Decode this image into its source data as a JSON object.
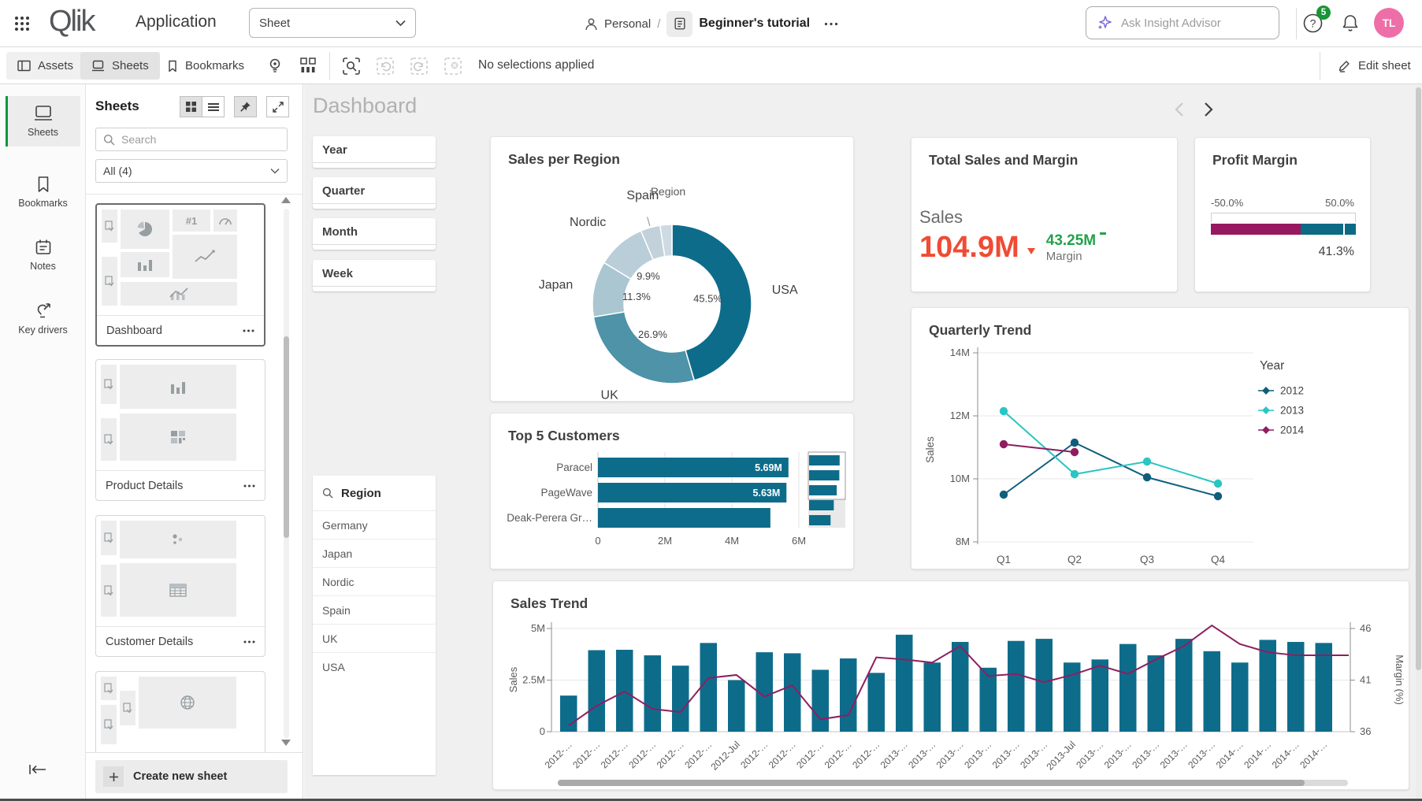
{
  "app": {
    "brand": "Qlik",
    "title": "Application",
    "view_selector": "Sheet",
    "space": "Personal",
    "separator": "/",
    "doc_title": "Beginner's tutorial",
    "insight_placeholder": "Ask Insight Advisor",
    "help_badge": "5",
    "avatar_initials": "TL"
  },
  "toolbar": {
    "assets": "Assets",
    "sheets": "Sheets",
    "bookmarks": "Bookmarks",
    "selections_status": "No selections applied",
    "edit_sheet": "Edit sheet"
  },
  "nav_rail": {
    "items": [
      "Sheets",
      "Bookmarks",
      "Notes",
      "Key drivers"
    ]
  },
  "sheets_panel": {
    "title": "Sheets",
    "search_placeholder": "Search",
    "filter_value": "All (4)",
    "cards": [
      {
        "label": "Dashboard"
      },
      {
        "label": "Product Details"
      },
      {
        "label": "Customer Details"
      }
    ],
    "create_button": "Create new sheet"
  },
  "sheet": {
    "title": "Dashboard",
    "filters": [
      "Year",
      "Quarter",
      "Month",
      "Week"
    ],
    "region_filter": {
      "title": "Region",
      "items": [
        "Germany",
        "Japan",
        "Nordic",
        "Spain",
        "UK",
        "USA"
      ]
    }
  },
  "kpi_sales": {
    "title": "Total Sales and Margin",
    "label": "Sales",
    "value": "104.9M",
    "secondary_value": "43.25M",
    "secondary_label": "Margin",
    "value_color": "#f04b34",
    "secondary_color": "#23a14d"
  },
  "gauge": {
    "title": "Profit Margin",
    "min_label": "-50.0%",
    "max_label": "50.0%",
    "value_label": "41.3%",
    "min": -50,
    "max": 50,
    "value": 41.3,
    "segment_split_pct": 62,
    "low_color": "#97195f",
    "high_color": "#0c6a84"
  },
  "chart_data": [
    {
      "id": "sales_per_region",
      "type": "pie",
      "title": "Sales per Region",
      "legend_title": "Region",
      "labels": [
        "USA",
        "UK",
        "Japan",
        "Nordic",
        "Spain",
        "Germany"
      ],
      "values": [
        45.5,
        26.9,
        11.3,
        9.9,
        4.0,
        2.4
      ],
      "value_labels": [
        "45.5%",
        "26.9%",
        "11.3%",
        "9.9%",
        "",
        ""
      ],
      "outer_labels": [
        "USA",
        "UK",
        "Japan",
        "Nordic",
        "Spain",
        ""
      ],
      "colors": [
        "#0e6c8b",
        "#4e93a8",
        "#a9c6d1",
        "#b9ced8",
        "#c3d2da",
        "#cedae1"
      ],
      "donut": true
    },
    {
      "id": "top5_customers",
      "type": "bar",
      "title": "Top 5 Customers",
      "orientation": "horizontal",
      "categories": [
        "Paracel",
        "PageWave",
        "Deak-Perera Gr…"
      ],
      "values": [
        5.69,
        5.63,
        5.15
      ],
      "bar_labels": [
        "5.69M",
        "5.63M",
        ""
      ],
      "xticks": [
        "0",
        "2M",
        "4M",
        "6M"
      ],
      "xtick_values": [
        0,
        2,
        4,
        6
      ],
      "xmax": 6.6,
      "bar_color": "#0e6c8b",
      "navigator_values": [
        5.69,
        5.63,
        5.15,
        4.6,
        4.0
      ],
      "navigator_window": 3
    },
    {
      "id": "quarterly_trend",
      "type": "line",
      "title": "Quarterly Trend",
      "ylabel": "Sales",
      "legend_title": "Year",
      "categories": [
        "Q1",
        "Q2",
        "Q3",
        "Q4"
      ],
      "yticks": [
        "8M",
        "10M",
        "12M",
        "14M"
      ],
      "ytick_values": [
        8,
        10,
        12,
        14
      ],
      "ylim": [
        8,
        14.6
      ],
      "series": [
        {
          "name": "2012",
          "color": "#0f5e7d",
          "values": [
            9.5,
            11.15,
            10.05,
            9.45
          ]
        },
        {
          "name": "2013",
          "color": "#29c6c3",
          "values": [
            12.15,
            10.15,
            10.55,
            9.85
          ]
        },
        {
          "name": "2014",
          "color": "#8e1e60",
          "values": [
            11.1,
            10.85,
            null,
            null
          ]
        }
      ]
    },
    {
      "id": "sales_trend",
      "type": "combo",
      "title": "Sales Trend",
      "ylabel_left": "Sales",
      "ylabel_right": "Margin (%)",
      "yticks_left": [
        "0",
        "2.5M",
        "5M"
      ],
      "ytick_values_left": [
        0,
        2.5,
        5
      ],
      "ylim_left": [
        0,
        5.2
      ],
      "yticks_right": [
        "36",
        "41",
        "46"
      ],
      "ytick_values_right": [
        36,
        41,
        46
      ],
      "ylim_right": [
        36,
        46.4
      ],
      "categories": [
        "2012-…",
        "2012-…",
        "2012-…",
        "2012-…",
        "2012-…",
        "2012-…",
        "2012-Jul",
        "2012-…",
        "2012-…",
        "2012-…",
        "2012-…",
        "2012-…",
        "2013-…",
        "2013-…",
        "2013-…",
        "2013-…",
        "2013-…",
        "2013-…",
        "2013-Jul",
        "2013-…",
        "2013-…",
        "2013-…",
        "2013-…",
        "2013-…",
        "2014-…",
        "2014-…",
        "2014-…",
        "2014-…"
      ],
      "bars": {
        "name": "Sales",
        "color": "#0e6c8b",
        "values": [
          1.75,
          3.95,
          3.97,
          3.7,
          3.2,
          4.3,
          2.5,
          3.85,
          3.8,
          3.0,
          3.55,
          2.85,
          4.7,
          3.35,
          4.35,
          3.1,
          4.4,
          4.5,
          3.35,
          3.5,
          4.25,
          3.7,
          4.5,
          3.9,
          3.35,
          4.45,
          4.35,
          4.3
        ]
      },
      "line": {
        "name": "Margin (%)",
        "color": "#8e1e60",
        "values": [
          36.6,
          38.5,
          39.9,
          38.2,
          37.9,
          41.2,
          41.5,
          39.4,
          40.5,
          37.2,
          37.6,
          43.2,
          43.0,
          42.7,
          44.3,
          41.4,
          41.6,
          40.8,
          41.5,
          42.4,
          41.6,
          43.0,
          44.3,
          46.3,
          44.5,
          43.7,
          43.4,
          43.4
        ]
      }
    }
  ]
}
